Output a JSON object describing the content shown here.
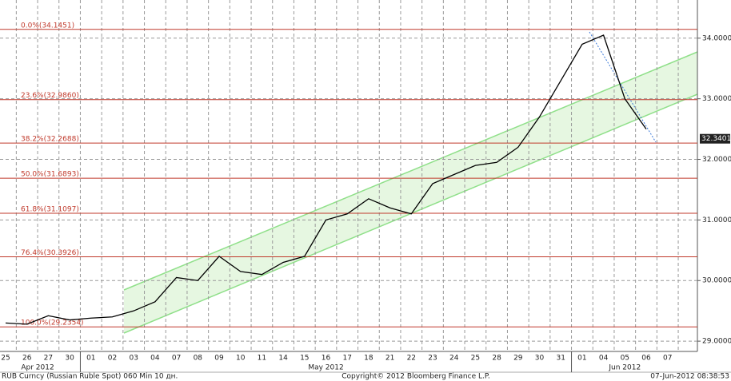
{
  "chart_data": {
    "type": "line",
    "categories": [
      "25",
      "26",
      "27",
      "30",
      "01",
      "02",
      "03",
      "04",
      "07",
      "08",
      "09",
      "10",
      "11",
      "14",
      "15",
      "16",
      "17",
      "18",
      "21",
      "22",
      "23",
      "24",
      "25",
      "28",
      "29",
      "30",
      "31",
      "01",
      "04",
      "05",
      "06",
      "07"
    ],
    "months": [
      "Apr 2012",
      "May 2012",
      "Jun 2012"
    ],
    "series": [
      {
        "name": "RUB Curncy",
        "color": "#000000",
        "values": [
          29.3,
          29.28,
          29.42,
          29.35,
          29.38,
          29.4,
          29.5,
          29.65,
          30.05,
          30.0,
          30.4,
          30.15,
          30.1,
          30.3,
          30.4,
          31.0,
          31.1,
          31.35,
          31.2,
          31.1,
          31.6,
          31.75,
          31.9,
          31.95,
          32.2,
          32.7,
          33.3,
          33.9,
          34.05,
          33.0,
          32.5,
          null
        ]
      }
    ],
    "last_price": {
      "value": 32.3401,
      "label": "32.3401"
    },
    "fib_levels": [
      {
        "value": 34.1451,
        "label": "0.0%(34.1451)"
      },
      {
        "value": 32.986,
        "label": "23.6%(32.9860)"
      },
      {
        "value": 32.2688,
        "label": "38.2%(32.2688)"
      },
      {
        "value": 31.6893,
        "label": "50.0%(31.6893)"
      },
      {
        "value": 31.1097,
        "label": "61.8%(31.1097)"
      },
      {
        "value": 30.3926,
        "label": "76.4%(30.3926)"
      },
      {
        "value": 29.2354,
        "label": "100.0%(29.2354)"
      }
    ],
    "fib_color": "#c0392b",
    "ylim": [
      28.83,
      34.63
    ],
    "yticks": [
      {
        "value": 29,
        "label": "29.0000"
      },
      {
        "value": 30,
        "label": "30.0000"
      },
      {
        "value": 31,
        "label": "31.0000"
      },
      {
        "value": 32,
        "label": "32.0000"
      },
      {
        "value": 33,
        "label": "33.0000"
      },
      {
        "value": 34,
        "label": "34.0000"
      }
    ],
    "grid": true,
    "footer": {
      "left": "RUB Curncy (Russian Ruble Spot) 060 Min 10 дн.",
      "center": "Copyright© 2012 Bloomberg Finance L.P.",
      "right": "07-Jun-2012 08:38:53"
    }
  }
}
